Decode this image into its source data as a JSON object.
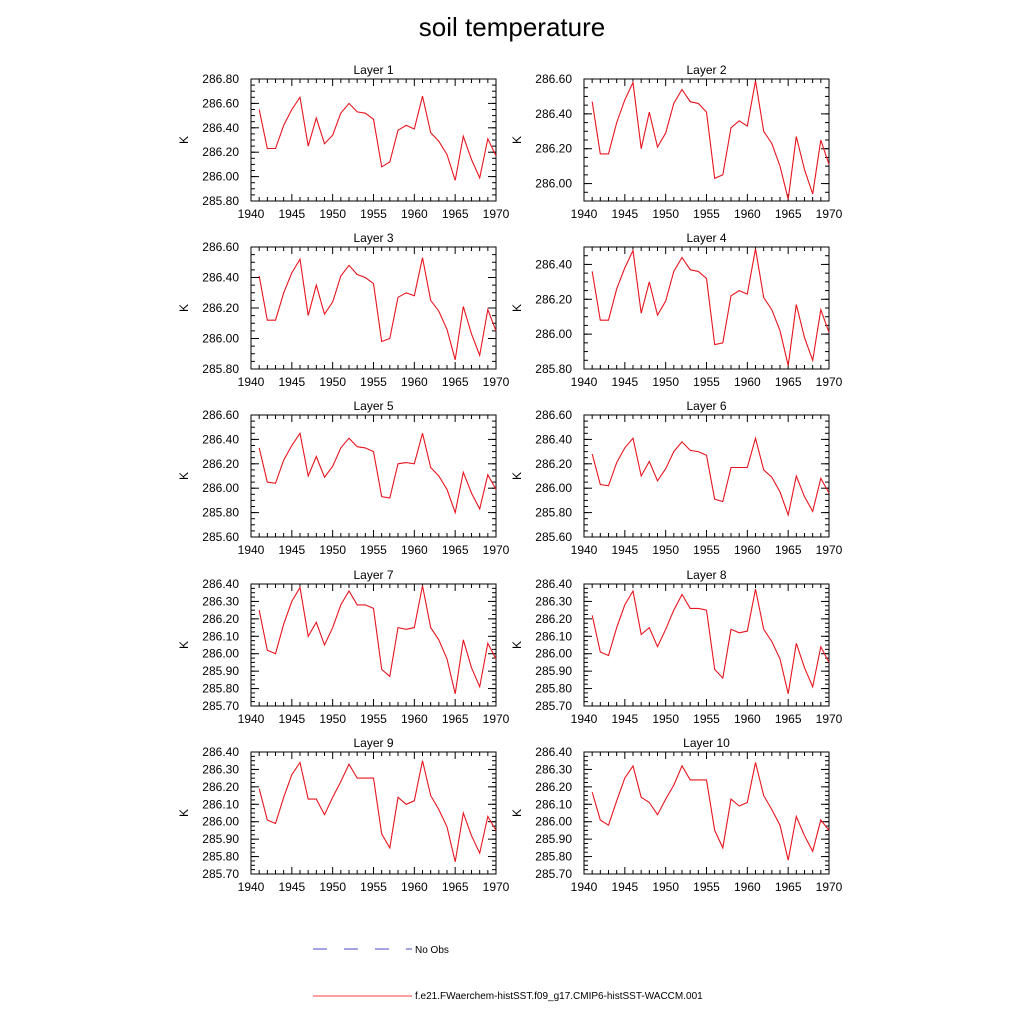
{
  "title": "soil temperature",
  "legend": [
    {
      "label": "No Obs",
      "color": "#4a4ac8",
      "dashed": true
    },
    {
      "label": "f.e21.FWaerchem-histSST.f09_g17.CMIP6-histSST-WACCM.001",
      "color": "#ff4040",
      "dashed": false
    }
  ],
  "chart_data": [
    {
      "type": "line",
      "title": "Layer 1",
      "ylabel": "K",
      "color": "#e8141e",
      "xlim": [
        1940,
        1970
      ],
      "ylim": [
        285.8,
        286.8
      ],
      "xticks": [
        "1940",
        "1945",
        "1950",
        "1955",
        "1960",
        "1965",
        "1970"
      ],
      "yticks": [
        "285.80",
        "286.00",
        "286.20",
        "286.40",
        "286.60",
        "286.80"
      ],
      "x": [
        1941,
        1942,
        1943,
        1944,
        1945,
        1946,
        1947,
        1948,
        1949,
        1950,
        1951,
        1952,
        1953,
        1954,
        1955,
        1956,
        1957,
        1958,
        1959,
        1960,
        1961,
        1962,
        1963,
        1964,
        1965,
        1966,
        1967,
        1968,
        1969,
        1970
      ],
      "y": [
        286.55,
        286.23,
        286.23,
        286.42,
        286.55,
        286.65,
        286.25,
        286.48,
        286.27,
        286.34,
        286.52,
        286.6,
        286.53,
        286.52,
        286.47,
        286.08,
        286.12,
        286.38,
        286.42,
        286.39,
        286.66,
        286.36,
        286.29,
        286.18,
        285.97,
        286.33,
        286.14,
        285.99,
        286.31,
        286.17
      ]
    },
    {
      "type": "line",
      "title": "Layer 2",
      "ylabel": "K",
      "color": "#e8141e",
      "xlim": [
        1940,
        1970
      ],
      "ylim": [
        285.9,
        286.6
      ],
      "xticks": [
        "1940",
        "1945",
        "1950",
        "1955",
        "1960",
        "1965",
        "1970"
      ],
      "yticks": [
        "286.00",
        "286.20",
        "286.40",
        "286.60"
      ],
      "x": [
        1941,
        1942,
        1943,
        1944,
        1945,
        1946,
        1947,
        1948,
        1949,
        1950,
        1951,
        1952,
        1953,
        1954,
        1955,
        1956,
        1957,
        1958,
        1959,
        1960,
        1961,
        1962,
        1963,
        1964,
        1965,
        1966,
        1967,
        1968,
        1969,
        1970
      ],
      "y": [
        286.47,
        286.17,
        286.17,
        286.35,
        286.48,
        286.58,
        286.2,
        286.41,
        286.21,
        286.29,
        286.46,
        286.54,
        286.47,
        286.46,
        286.41,
        286.03,
        286.05,
        286.32,
        286.36,
        286.33,
        286.59,
        286.3,
        286.23,
        286.1,
        285.91,
        286.27,
        286.08,
        285.94,
        286.25,
        286.11
      ]
    },
    {
      "type": "line",
      "title": "Layer 3",
      "ylabel": "K",
      "color": "#e8141e",
      "xlim": [
        1940,
        1970
      ],
      "ylim": [
        285.8,
        286.6
      ],
      "xticks": [
        "1940",
        "1945",
        "1950",
        "1955",
        "1960",
        "1965",
        "1970"
      ],
      "yticks": [
        "285.80",
        "286.00",
        "286.20",
        "286.40",
        "286.60"
      ],
      "x": [
        1941,
        1942,
        1943,
        1944,
        1945,
        1946,
        1947,
        1948,
        1949,
        1950,
        1951,
        1952,
        1953,
        1954,
        1955,
        1956,
        1957,
        1958,
        1959,
        1960,
        1961,
        1962,
        1963,
        1964,
        1965,
        1966,
        1967,
        1968,
        1969,
        1970
      ],
      "y": [
        286.41,
        286.12,
        286.12,
        286.3,
        286.43,
        286.52,
        286.15,
        286.35,
        286.16,
        286.24,
        286.41,
        286.48,
        286.42,
        286.4,
        286.36,
        285.98,
        286.0,
        286.27,
        286.3,
        286.28,
        286.53,
        286.25,
        286.18,
        286.06,
        285.86,
        286.21,
        286.03,
        285.89,
        286.19,
        286.05
      ]
    },
    {
      "type": "line",
      "title": "Layer 4",
      "ylabel": "K",
      "color": "#e8141e",
      "xlim": [
        1940,
        1970
      ],
      "ylim": [
        285.8,
        286.5
      ],
      "xticks": [
        "1940",
        "1945",
        "1950",
        "1955",
        "1960",
        "1965",
        "1970"
      ],
      "yticks": [
        "285.80",
        "286.00",
        "286.20",
        "286.40"
      ],
      "x": [
        1941,
        1942,
        1943,
        1944,
        1945,
        1946,
        1947,
        1948,
        1949,
        1950,
        1951,
        1952,
        1953,
        1954,
        1955,
        1956,
        1957,
        1958,
        1959,
        1960,
        1961,
        1962,
        1963,
        1964,
        1965,
        1966,
        1967,
        1968,
        1969,
        1970
      ],
      "y": [
        286.36,
        286.08,
        286.08,
        286.26,
        286.38,
        286.48,
        286.12,
        286.3,
        286.11,
        286.19,
        286.36,
        286.44,
        286.37,
        286.36,
        286.32,
        285.94,
        285.95,
        286.22,
        286.25,
        286.23,
        286.49,
        286.21,
        286.14,
        286.02,
        285.82,
        286.17,
        285.98,
        285.85,
        286.14,
        286.01
      ]
    },
    {
      "type": "line",
      "title": "Layer 5",
      "ylabel": "K",
      "color": "#e8141e",
      "xlim": [
        1940,
        1970
      ],
      "ylim": [
        285.6,
        286.6
      ],
      "xticks": [
        "1940",
        "1945",
        "1950",
        "1955",
        "1960",
        "1965",
        "1970"
      ],
      "yticks": [
        "285.60",
        "285.80",
        "286.00",
        "286.20",
        "286.40",
        "286.60"
      ],
      "x": [
        1941,
        1942,
        1943,
        1944,
        1945,
        1946,
        1947,
        1948,
        1949,
        1950,
        1951,
        1952,
        1953,
        1954,
        1955,
        1956,
        1957,
        1958,
        1959,
        1960,
        1961,
        1962,
        1963,
        1964,
        1965,
        1966,
        1967,
        1968,
        1969,
        1970
      ],
      "y": [
        286.33,
        286.05,
        286.04,
        286.23,
        286.35,
        286.45,
        286.1,
        286.26,
        286.09,
        286.18,
        286.33,
        286.41,
        286.34,
        286.33,
        286.3,
        285.93,
        285.92,
        286.2,
        286.21,
        286.2,
        286.45,
        286.17,
        286.1,
        285.99,
        285.8,
        286.13,
        285.96,
        285.83,
        286.11,
        285.99
      ]
    },
    {
      "type": "line",
      "title": "Layer 6",
      "ylabel": "K",
      "color": "#e8141e",
      "xlim": [
        1940,
        1970
      ],
      "ylim": [
        285.6,
        286.6
      ],
      "xticks": [
        "1940",
        "1945",
        "1950",
        "1955",
        "1960",
        "1965",
        "1970"
      ],
      "yticks": [
        "285.60",
        "285.80",
        "286.00",
        "286.20",
        "286.40",
        "286.60"
      ],
      "x": [
        1941,
        1942,
        1943,
        1944,
        1945,
        1946,
        1947,
        1948,
        1949,
        1950,
        1951,
        1952,
        1953,
        1954,
        1955,
        1956,
        1957,
        1958,
        1959,
        1960,
        1961,
        1962,
        1963,
        1964,
        1965,
        1966,
        1967,
        1968,
        1969,
        1970
      ],
      "y": [
        286.28,
        286.03,
        286.02,
        286.21,
        286.33,
        286.41,
        286.1,
        286.22,
        286.06,
        286.16,
        286.3,
        286.38,
        286.31,
        286.3,
        286.27,
        285.91,
        285.89,
        286.17,
        286.17,
        286.17,
        286.41,
        286.15,
        286.09,
        285.97,
        285.78,
        286.1,
        285.93,
        285.81,
        286.08,
        285.96
      ]
    },
    {
      "type": "line",
      "title": "Layer 7",
      "ylabel": "K",
      "color": "#e8141e",
      "xlim": [
        1940,
        1970
      ],
      "ylim": [
        285.7,
        286.4
      ],
      "xticks": [
        "1940",
        "1945",
        "1950",
        "1955",
        "1960",
        "1965",
        "1970"
      ],
      "yticks": [
        "285.70",
        "285.80",
        "285.90",
        "286.00",
        "286.10",
        "286.20",
        "286.30",
        "286.40"
      ],
      "x": [
        1941,
        1942,
        1943,
        1944,
        1945,
        1946,
        1947,
        1948,
        1949,
        1950,
        1951,
        1952,
        1953,
        1954,
        1955,
        1956,
        1957,
        1958,
        1959,
        1960,
        1961,
        1962,
        1963,
        1964,
        1965,
        1966,
        1967,
        1968,
        1969,
        1970
      ],
      "y": [
        286.25,
        286.02,
        286.0,
        286.17,
        286.3,
        286.38,
        286.1,
        286.18,
        286.05,
        286.15,
        286.28,
        286.36,
        286.28,
        286.28,
        286.26,
        285.91,
        285.87,
        286.15,
        286.14,
        286.15,
        286.39,
        286.15,
        286.08,
        285.97,
        285.77,
        286.08,
        285.92,
        285.81,
        286.06,
        285.97
      ]
    },
    {
      "type": "line",
      "title": "Layer 8",
      "ylabel": "K",
      "color": "#e8141e",
      "xlim": [
        1940,
        1970
      ],
      "ylim": [
        285.7,
        286.4
      ],
      "xticks": [
        "1940",
        "1945",
        "1950",
        "1955",
        "1960",
        "1965",
        "1970"
      ],
      "yticks": [
        "285.70",
        "285.80",
        "285.90",
        "286.00",
        "286.10",
        "286.20",
        "286.30",
        "286.40"
      ],
      "x": [
        1941,
        1942,
        1943,
        1944,
        1945,
        1946,
        1947,
        1948,
        1949,
        1950,
        1951,
        1952,
        1953,
        1954,
        1955,
        1956,
        1957,
        1958,
        1959,
        1960,
        1961,
        1962,
        1963,
        1964,
        1965,
        1966,
        1967,
        1968,
        1969,
        1970
      ],
      "y": [
        286.22,
        286.01,
        285.99,
        286.15,
        286.28,
        286.36,
        286.11,
        286.15,
        286.04,
        286.14,
        286.25,
        286.34,
        286.26,
        286.26,
        286.25,
        285.91,
        285.86,
        286.14,
        286.12,
        286.13,
        286.37,
        286.14,
        286.07,
        285.97,
        285.77,
        286.06,
        285.92,
        285.81,
        286.04,
        285.95
      ]
    },
    {
      "type": "line",
      "title": "Layer 9",
      "ylabel": "K",
      "color": "#e8141e",
      "xlim": [
        1940,
        1970
      ],
      "ylim": [
        285.7,
        286.4
      ],
      "xticks": [
        "1940",
        "1945",
        "1950",
        "1955",
        "1960",
        "1965",
        "1970"
      ],
      "yticks": [
        "285.70",
        "285.80",
        "285.90",
        "286.00",
        "286.10",
        "286.20",
        "286.30",
        "286.40"
      ],
      "x": [
        1941,
        1942,
        1943,
        1944,
        1945,
        1946,
        1947,
        1948,
        1949,
        1950,
        1951,
        1952,
        1953,
        1954,
        1955,
        1956,
        1957,
        1958,
        1959,
        1960,
        1961,
        1962,
        1963,
        1964,
        1965,
        1966,
        1967,
        1968,
        1969,
        1970
      ],
      "y": [
        286.19,
        286.01,
        285.99,
        286.14,
        286.27,
        286.34,
        286.13,
        286.13,
        286.04,
        286.14,
        286.23,
        286.33,
        286.25,
        286.25,
        286.25,
        285.93,
        285.85,
        286.14,
        286.1,
        286.12,
        286.35,
        286.15,
        286.07,
        285.97,
        285.77,
        286.05,
        285.92,
        285.82,
        286.03,
        285.95
      ]
    },
    {
      "type": "line",
      "title": "Layer 10",
      "ylabel": "K",
      "color": "#e8141e",
      "xlim": [
        1940,
        1970
      ],
      "ylim": [
        285.7,
        286.4
      ],
      "xticks": [
        "1940",
        "1945",
        "1950",
        "1955",
        "1960",
        "1965",
        "1970"
      ],
      "yticks": [
        "285.70",
        "285.80",
        "285.90",
        "286.00",
        "286.10",
        "286.20",
        "286.30",
        "286.40"
      ],
      "x": [
        1941,
        1942,
        1943,
        1944,
        1945,
        1946,
        1947,
        1948,
        1949,
        1950,
        1951,
        1952,
        1953,
        1954,
        1955,
        1956,
        1957,
        1958,
        1959,
        1960,
        1961,
        1962,
        1963,
        1964,
        1965,
        1966,
        1967,
        1968,
        1969,
        1970
      ],
      "y": [
        286.17,
        286.01,
        285.98,
        286.12,
        286.25,
        286.32,
        286.14,
        286.11,
        286.04,
        286.13,
        286.21,
        286.32,
        286.24,
        286.24,
        286.24,
        285.95,
        285.85,
        286.13,
        286.09,
        286.11,
        286.34,
        286.15,
        286.07,
        285.98,
        285.78,
        286.03,
        285.92,
        285.83,
        286.01,
        285.95
      ]
    }
  ]
}
